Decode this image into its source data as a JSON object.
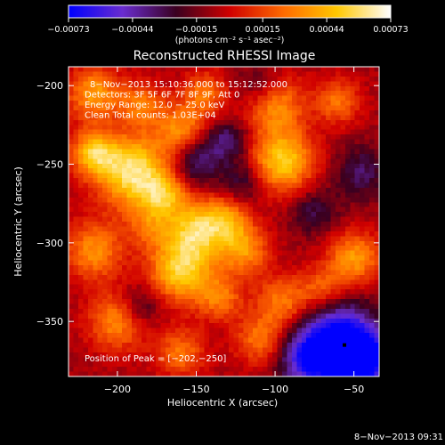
{
  "chart_data": {
    "type": "heatmap",
    "title": "Reconstructed RHESSI Image",
    "xlabel": "Heliocentric X (arcsec)",
    "ylabel": "Heliocentric Y (arcsec)",
    "xlim": [
      -231,
      -34
    ],
    "ylim": [
      -385,
      -188
    ],
    "x_ticks": [
      -200,
      -150,
      -100,
      -50
    ],
    "y_ticks": [
      -200,
      -250,
      -300,
      -350
    ],
    "x_tick_labels": [
      "−200",
      "−150",
      "−100",
      "−50"
    ],
    "y_tick_labels": [
      "−200",
      "−250",
      "−300",
      "−350"
    ],
    "colorbar": {
      "min": -0.00073,
      "max": 0.00073,
      "ticks": [
        -0.00073,
        -0.00044,
        -0.00015,
        0.00015,
        0.00044,
        0.00073
      ],
      "tick_labels": [
        "−0.00073",
        "−0.00044",
        "−0.00015",
        "0.00015",
        "0.00044",
        "0.00073"
      ],
      "unit_label": "(photons cm⁻² s⁻¹ asec⁻²)",
      "colormap": [
        "#0000ff",
        "#6a2dd0",
        "#3a0020",
        "#d00000",
        "#ff6a00",
        "#ffc800",
        "#ffffff"
      ]
    },
    "annotations": [
      "8−Nov−2013 15:10:36.000 to 15:12:52.000",
      "Detectors: 3F 5F 6F 7F 8F 9F, Att 0",
      "Energy Range: 12.0 − 25.0 keV",
      "Clean    Total counts: 1.03E+04"
    ],
    "peak_label": "Position of Peak = [−202,−250]",
    "peak": [
      -202,
      -250
    ],
    "marker": [
      -56,
      -365
    ],
    "features": [
      {
        "x": -190,
        "y": -255,
        "amp": 0.95,
        "r": 16
      },
      {
        "x": -215,
        "y": -243,
        "amp": 0.7,
        "r": 10
      },
      {
        "x": -215,
        "y": -205,
        "amp": 0.6,
        "r": 12
      },
      {
        "x": -185,
        "y": -212,
        "amp": 0.45,
        "r": 10
      },
      {
        "x": -160,
        "y": -228,
        "amp": 0.55,
        "r": 11
      },
      {
        "x": -145,
        "y": -205,
        "amp": 0.45,
        "r": 10
      },
      {
        "x": -100,
        "y": -212,
        "amp": 0.55,
        "r": 13
      },
      {
        "x": -60,
        "y": -210,
        "amp": 0.45,
        "r": 10
      },
      {
        "x": -95,
        "y": -248,
        "amp": 0.8,
        "r": 14
      },
      {
        "x": -170,
        "y": -270,
        "amp": 0.55,
        "r": 10
      },
      {
        "x": -150,
        "y": -292,
        "amp": 0.75,
        "r": 13
      },
      {
        "x": -130,
        "y": -285,
        "amp": 0.5,
        "r": 11
      },
      {
        "x": -160,
        "y": -318,
        "amp": 0.8,
        "r": 14
      },
      {
        "x": -120,
        "y": -305,
        "amp": 0.55,
        "r": 11
      },
      {
        "x": -95,
        "y": -338,
        "amp": 0.5,
        "r": 12
      },
      {
        "x": -110,
        "y": -362,
        "amp": 0.45,
        "r": 11
      },
      {
        "x": -50,
        "y": -310,
        "amp": 0.6,
        "r": 12
      },
      {
        "x": -70,
        "y": -330,
        "amp": 0.4,
        "r": 10
      },
      {
        "x": -215,
        "y": -305,
        "amp": 0.55,
        "r": 13
      },
      {
        "x": -200,
        "y": -350,
        "amp": 0.55,
        "r": 13
      },
      {
        "x": -160,
        "y": -370,
        "amp": 0.45,
        "r": 11
      },
      {
        "x": -135,
        "y": -335,
        "amp": 0.45,
        "r": 10
      },
      {
        "x": -180,
        "y": -290,
        "amp": 0.35,
        "r": 10
      },
      {
        "x": -120,
        "y": -262,
        "amp": -0.35,
        "r": 10
      },
      {
        "x": -150,
        "y": -248,
        "amp": -0.45,
        "r": 11
      },
      {
        "x": -130,
        "y": -235,
        "amp": -0.4,
        "r": 9
      },
      {
        "x": -185,
        "y": -340,
        "amp": -0.35,
        "r": 10
      },
      {
        "x": -60,
        "y": -365,
        "amp": -1.1,
        "r": 18
      },
      {
        "x": -45,
        "y": -375,
        "amp": -0.8,
        "r": 12
      },
      {
        "x": -80,
        "y": -375,
        "amp": -0.5,
        "r": 12
      },
      {
        "x": -45,
        "y": -255,
        "amp": -0.35,
        "r": 12
      },
      {
        "x": -75,
        "y": -280,
        "amp": -0.3,
        "r": 11
      },
      {
        "x": -110,
        "y": -200,
        "amp": -0.3,
        "r": 10
      }
    ]
  },
  "footer": {
    "date": "8−Nov−2013 09:31"
  }
}
